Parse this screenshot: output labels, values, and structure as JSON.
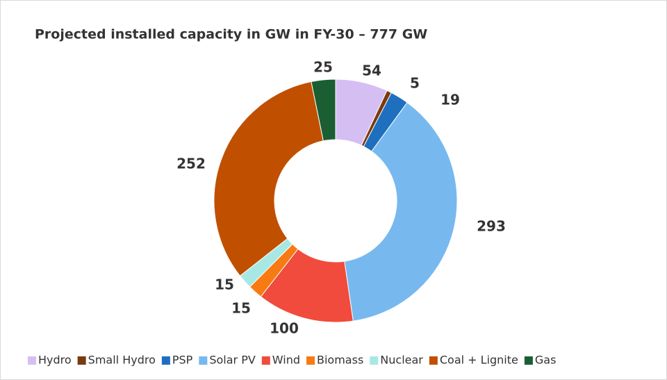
{
  "chart_data": {
    "type": "donut",
    "title": "Projected installed capacity in GW in FY-30 – 777 GW",
    "categories": [
      "Hydro",
      "Small Hydro",
      "PSP",
      "Solar PV",
      "Wind",
      "Biomass",
      "Nuclear",
      "Coal + Lignite",
      "Gas"
    ],
    "values": [
      54,
      5,
      19,
      293,
      100,
      15,
      15,
      252,
      25
    ],
    "colors": [
      "#d5bff2",
      "#7a3a10",
      "#1f6fbf",
      "#77b9ef",
      "#f04b3c",
      "#f77b12",
      "#a7e8e4",
      "#c05000",
      "#1a5e32"
    ],
    "legend": "bottom"
  }
}
